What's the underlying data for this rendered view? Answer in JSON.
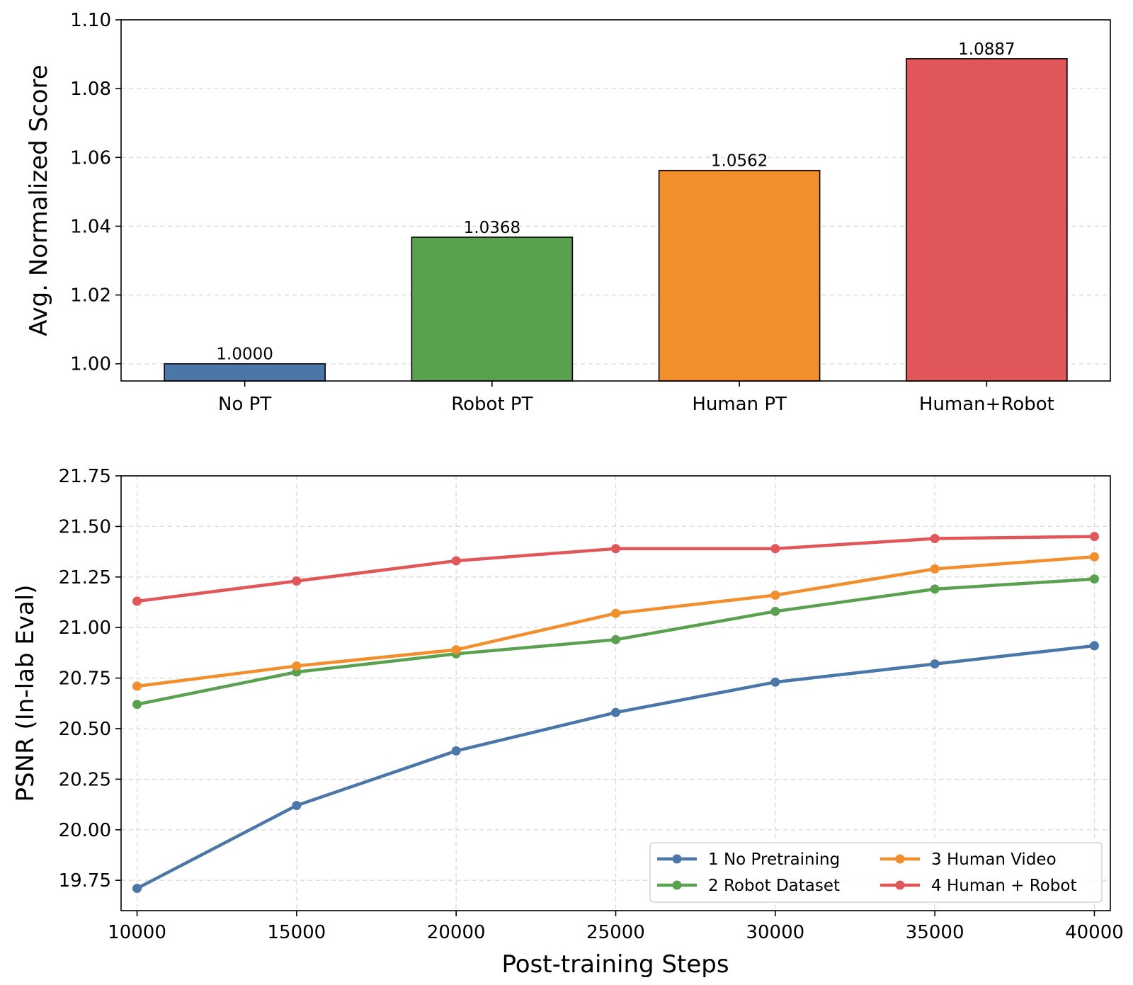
{
  "chart_data": [
    {
      "type": "bar",
      "categories": [
        "No PT",
        "Robot PT",
        "Human PT",
        "Human+Robot"
      ],
      "values": [
        1.0,
        1.0368,
        1.0562,
        1.0887
      ],
      "value_labels": [
        "1.0000",
        "1.0368",
        "1.0562",
        "1.0887"
      ],
      "colors": [
        "#4a76a8",
        "#59a14f",
        "#f28e2b",
        "#e15759"
      ],
      "title": "",
      "xlabel": "",
      "ylabel": "Avg. Normalized Score",
      "ylim": [
        0.995,
        1.1
      ],
      "yticks": [
        1.0,
        1.02,
        1.04,
        1.06,
        1.08,
        1.1
      ],
      "ytick_labels": [
        "1.00",
        "1.02",
        "1.04",
        "1.06",
        "1.08",
        "1.10"
      ],
      "grid": "y"
    },
    {
      "type": "line",
      "x": [
        10000,
        15000,
        20000,
        25000,
        30000,
        35000,
        40000
      ],
      "xtick_labels": [
        "10000",
        "15000",
        "20000",
        "25000",
        "30000",
        "35000",
        "40000"
      ],
      "series": [
        {
          "name": "1 No Pretraining",
          "color": "#4a76a8",
          "values": [
            19.71,
            20.12,
            20.39,
            20.58,
            20.73,
            20.82,
            20.91
          ]
        },
        {
          "name": "2 Robot Dataset",
          "color": "#59a14f",
          "values": [
            20.62,
            20.78,
            20.87,
            20.94,
            21.08,
            21.19,
            21.24
          ]
        },
        {
          "name": "3 Human Video",
          "color": "#f28e2b",
          "values": [
            20.71,
            20.81,
            20.89,
            21.07,
            21.16,
            21.29,
            21.35
          ]
        },
        {
          "name": "4 Human + Robot",
          "color": "#e15759",
          "values": [
            21.13,
            21.23,
            21.33,
            21.39,
            21.39,
            21.44,
            21.45
          ]
        }
      ],
      "title": "",
      "xlabel": "Post-training Steps",
      "ylabel": "PSNR (In-lab Eval)",
      "xlim": [
        9500,
        40500
      ],
      "ylim": [
        19.6,
        21.75
      ],
      "yticks": [
        19.75,
        20.0,
        20.25,
        20.5,
        20.75,
        21.0,
        21.25,
        21.5,
        21.75
      ],
      "ytick_labels": [
        "19.75",
        "20.00",
        "20.25",
        "20.50",
        "20.75",
        "21.00",
        "21.25",
        "21.50",
        "21.75"
      ],
      "grid": "both",
      "legend": "lower-right"
    }
  ]
}
